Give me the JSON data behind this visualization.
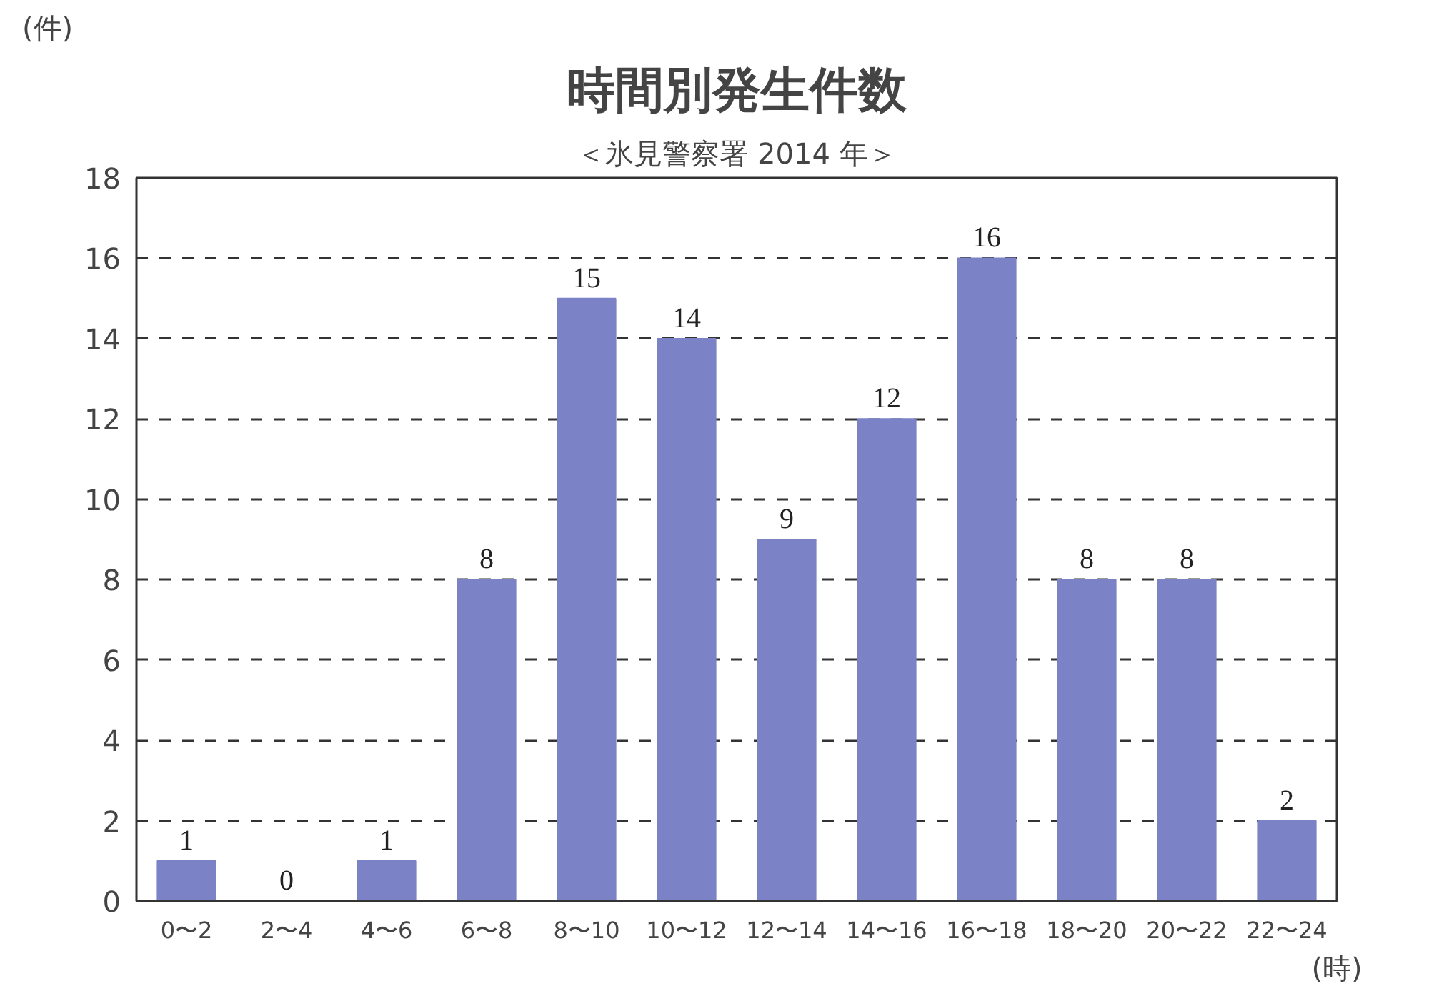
{
  "chart_data": {
    "type": "bar",
    "title": "時間別発生件数",
    "subtitle": "＜氷見警察署 2014 年＞",
    "xlabel": "(時)",
    "ylabel": "(件)",
    "categories": [
      "0〜2",
      "2〜4",
      "4〜6",
      "6〜8",
      "8〜10",
      "10〜12",
      "12〜14",
      "14〜16",
      "16〜18",
      "18〜20",
      "20〜22",
      "22〜24"
    ],
    "values": [
      1,
      0,
      1,
      8,
      15,
      14,
      9,
      12,
      16,
      8,
      8,
      2
    ],
    "color": "#7b83c6",
    "ylim": [
      0,
      18
    ],
    "yticks": [
      0,
      2,
      4,
      6,
      8,
      10,
      12,
      14,
      16,
      18
    ],
    "grid": "y",
    "line_style": "dashed",
    "data_labels": true
  }
}
